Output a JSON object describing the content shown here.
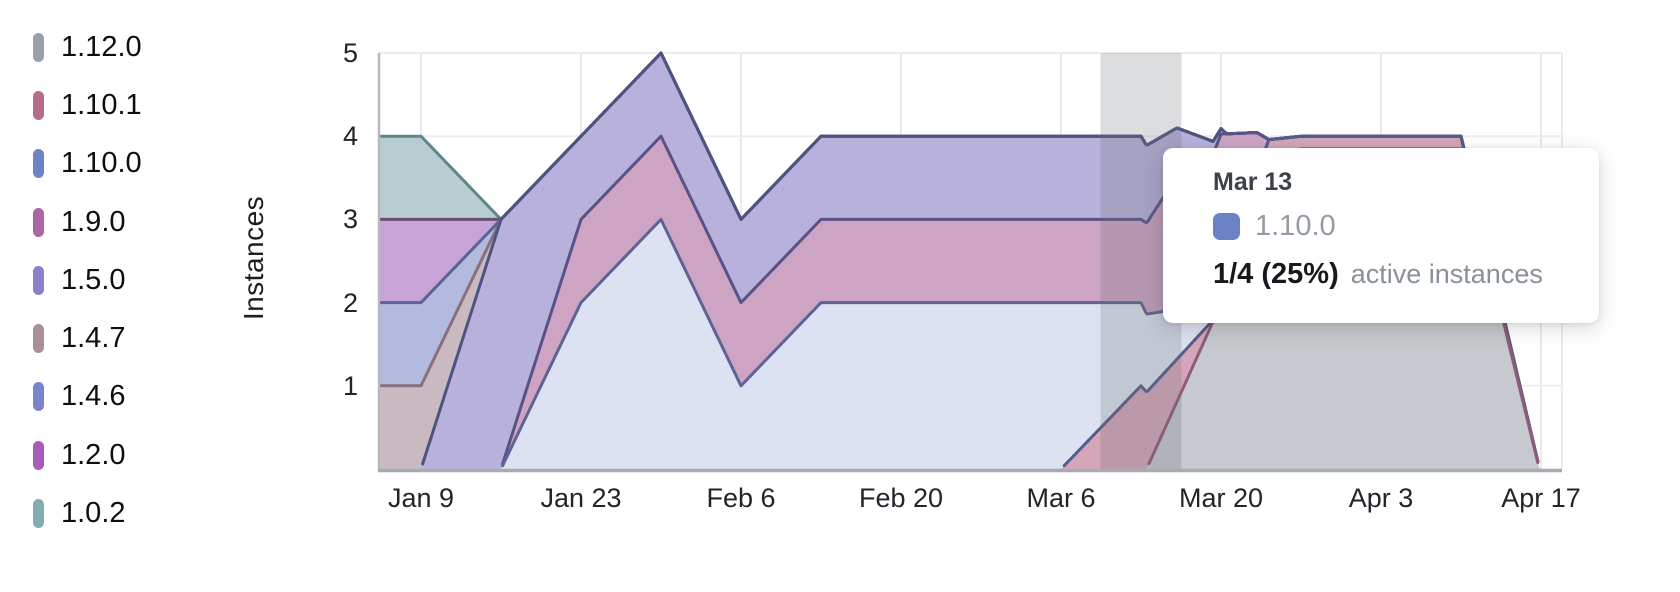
{
  "legend": {
    "items": [
      {
        "label": "1.12.0",
        "color": "#98a1aa"
      },
      {
        "label": "1.10.1",
        "color": "#b56d8b"
      },
      {
        "label": "1.10.0",
        "color": "#6d83c8"
      },
      {
        "label": "1.9.0",
        "color": "#aa67a4"
      },
      {
        "label": "1.5.0",
        "color": "#8d7fc8"
      },
      {
        "label": "1.4.7",
        "color": "#a8909b"
      },
      {
        "label": "1.4.6",
        "color": "#7a85c8"
      },
      {
        "label": "1.2.0",
        "color": "#a85cb5"
      },
      {
        "label": "1.0.2",
        "color": "#7fadb2"
      }
    ]
  },
  "y_axis": {
    "title": "Instances",
    "ticks": [
      "5",
      "4",
      "3",
      "2",
      "1"
    ]
  },
  "x_axis": {
    "ticks": [
      "Jan 9",
      "Jan 23",
      "Feb 6",
      "Feb 20",
      "Mar 6",
      "Mar 20",
      "Apr 3",
      "Apr 17"
    ]
  },
  "tooltip": {
    "date": "Mar 13",
    "series": "1.10.0",
    "swatch_color": "#6c82c6",
    "value": "1/4 (25%)",
    "caption": "active instances"
  },
  "chart_data": {
    "type": "area",
    "stacked": true,
    "title": "",
    "xlabel": "",
    "ylabel": "Instances",
    "ylim": [
      0,
      5
    ],
    "grid": true,
    "legend_position": "left",
    "x_unit": "weeks_since_Jan_2",
    "xtick_weeks": [
      1,
      3,
      5,
      7,
      9,
      11,
      13,
      15
    ],
    "hover": {
      "week": 10,
      "label": "Mar 13",
      "series": "1.10.0",
      "value": "1/4 (25%) active instances"
    },
    "weekly_totals_note": "total active instances: Jan2:4 Jan9:4 Jan16:3 Jan23:4 Jan30:5 Feb6:3 Feb13:4 Feb20:4 Feb27:4 Mar6:4 Mar13:4 Mar20:4 Mar27:4 Apr3:4 Apr10:4 Apr17:0",
    "series": [
      {
        "name": "1.12.0",
        "fill": "#c6c9cd",
        "line": "#8f5b79",
        "points": [
          [
            0,
            0
          ],
          [
            10.07,
            0
          ],
          [
            10.9,
            1.77
          ],
          [
            11.6,
            3.7
          ],
          [
            12,
            3.85
          ],
          [
            14,
            3.85
          ],
          [
            14.98,
            0
          ],
          [
            15.1,
            0
          ]
        ]
      },
      {
        "name": "1.10.1",
        "fill": "#d5a6ba",
        "line": "#565d8a",
        "points": [
          [
            0,
            0
          ],
          [
            9,
            0
          ],
          [
            10,
            1
          ],
          [
            10.9,
            0.02
          ],
          [
            11,
            0.15
          ],
          [
            11.45,
            0.3
          ],
          [
            12,
            0.15
          ],
          [
            14,
            0.15
          ],
          [
            15.03,
            0
          ],
          [
            15.1,
            0
          ]
        ]
      },
      {
        "name": "1.10.0",
        "fill": "#dde2f2",
        "line": "#5d6494",
        "points": [
          [
            0,
            0
          ],
          [
            2,
            0
          ],
          [
            3,
            2
          ],
          [
            4,
            3
          ],
          [
            5,
            1
          ],
          [
            6,
            2
          ],
          [
            9,
            2
          ],
          [
            10,
            1
          ],
          [
            10.9,
            0.2
          ],
          [
            11,
            0
          ],
          [
            15,
            0
          ]
        ]
      },
      {
        "name": "1.9.0",
        "fill": "#cda4c4",
        "line": "#5a5286",
        "points": [
          [
            0,
            0
          ],
          [
            2,
            0
          ],
          [
            3,
            1
          ],
          [
            10,
            1
          ],
          [
            10.45,
            1.6
          ],
          [
            11,
            1.83
          ],
          [
            11.6,
            0
          ],
          [
            15,
            0
          ]
        ]
      },
      {
        "name": "1.5.0",
        "fill": "#b7b1dc",
        "line": "#4d5480",
        "points": [
          [
            0,
            0
          ],
          [
            1,
            0
          ],
          [
            2,
            3
          ],
          [
            3,
            1
          ],
          [
            10,
            1
          ],
          [
            11.07,
            0
          ],
          [
            15,
            0
          ]
        ]
      },
      {
        "name": "1.4.7",
        "fill": "#c9bac2",
        "line": "#8a707c",
        "points": [
          [
            0,
            1
          ],
          [
            1,
            1
          ],
          [
            2,
            0
          ],
          [
            15,
            0
          ]
        ]
      },
      {
        "name": "1.4.6",
        "fill": "#b3bade",
        "line": "#5a629b",
        "points": [
          [
            0,
            1
          ],
          [
            1,
            1
          ],
          [
            2,
            0
          ],
          [
            15,
            0
          ]
        ]
      },
      {
        "name": "1.2.0",
        "fill": "#c8a3d5",
        "line": "#6b4f73",
        "points": [
          [
            0,
            1
          ],
          [
            1,
            1
          ],
          [
            2,
            0
          ],
          [
            15,
            0
          ]
        ]
      },
      {
        "name": "1.0.2",
        "fill": "#b7cdd1",
        "line": "#5d868d",
        "points": [
          [
            0,
            1
          ],
          [
            1,
            1
          ],
          [
            2,
            0
          ],
          [
            15,
            0
          ]
        ]
      }
    ]
  }
}
